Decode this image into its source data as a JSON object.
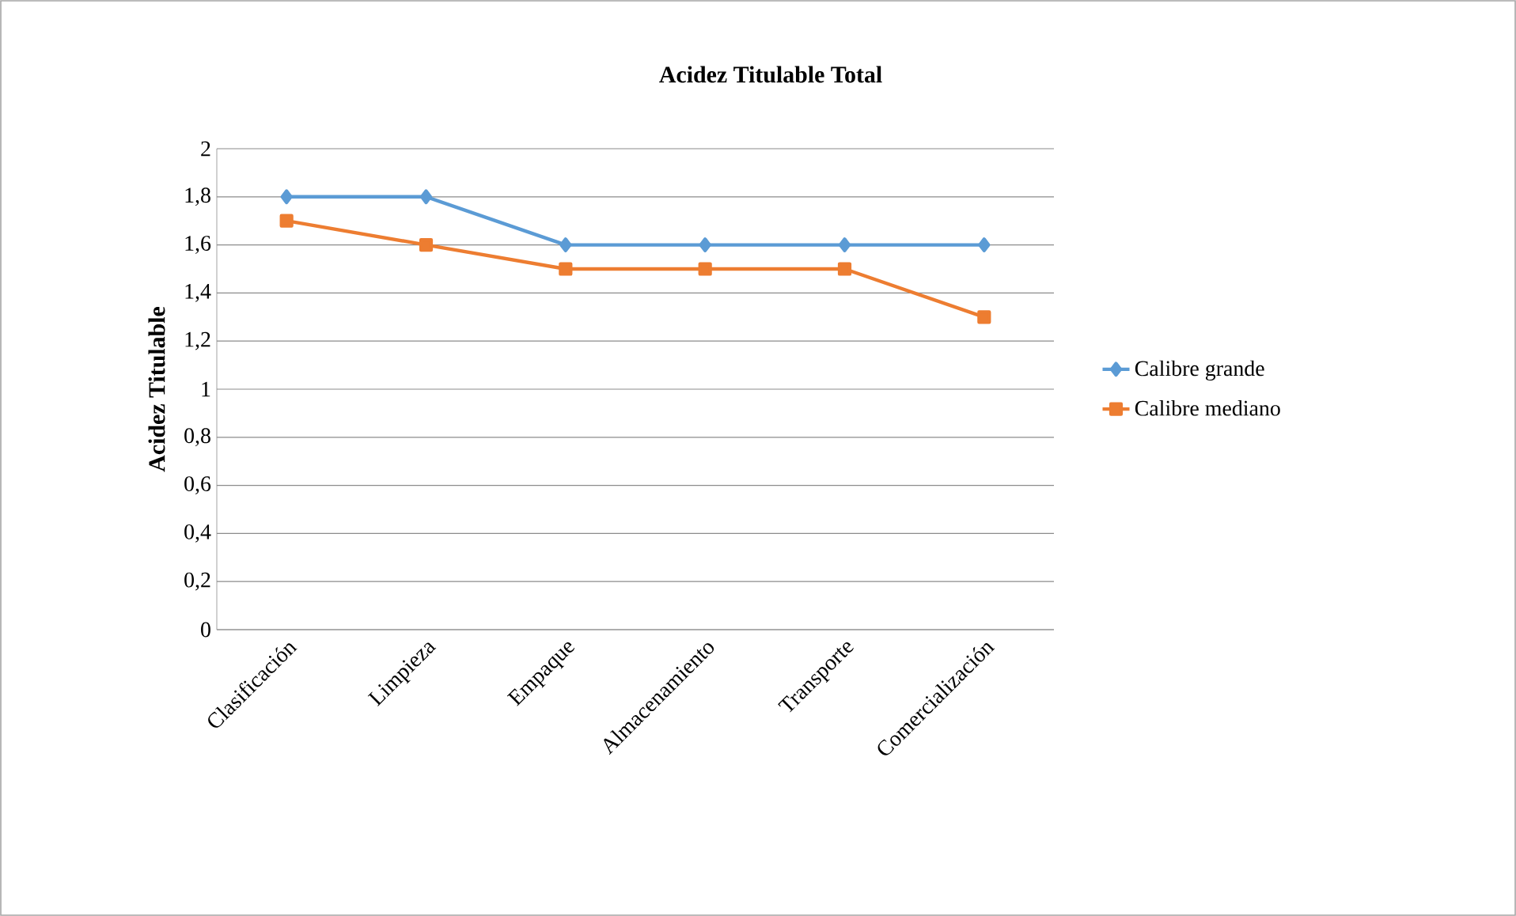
{
  "chart_data": {
    "type": "line",
    "title": "Acidez Titulable Total",
    "ylabel": "Acidez Titulable",
    "categories": [
      "Clasificación",
      "Limpieza",
      "Empaque",
      "Almacenamiento",
      "Transporte",
      "Comercialización"
    ],
    "series": [
      {
        "name": "Calibre grande",
        "color": "#5b9bd5",
        "marker": "diamond",
        "values": [
          1.8,
          1.8,
          1.6,
          1.6,
          1.6,
          1.6
        ]
      },
      {
        "name": "Calibre mediano",
        "color": "#ed7d31",
        "marker": "square",
        "values": [
          1.7,
          1.6,
          1.5,
          1.5,
          1.5,
          1.3
        ]
      }
    ],
    "ylim": [
      0,
      2
    ],
    "yticks": [
      0,
      {
        "value": 0.2,
        "label": "0,2"
      },
      {
        "value": 0.4,
        "label": "0,4"
      },
      {
        "value": 0.6,
        "label": "0,6"
      },
      {
        "value": 0.8,
        "label": "0,8"
      },
      1,
      {
        "value": 1.2,
        "label": "1,2"
      },
      {
        "value": 1.4,
        "label": "1,4"
      },
      {
        "value": 1.6,
        "label": "1,6"
      },
      {
        "value": 1.8,
        "label": "1,8"
      },
      2
    ],
    "grid": "y",
    "legend": "right"
  }
}
